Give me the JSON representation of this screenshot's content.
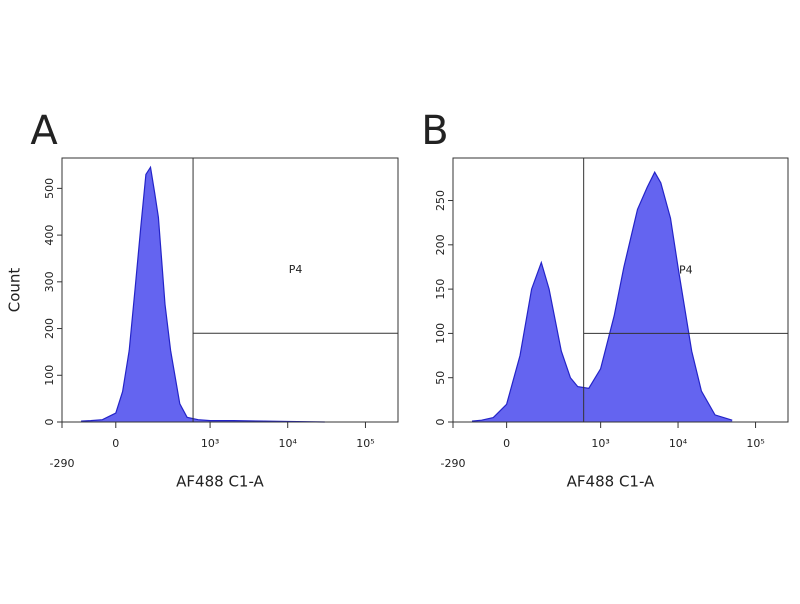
{
  "chart_data": [
    {
      "type": "area",
      "panel_label": "A",
      "x_label": "AF488 C1-A",
      "y_label": "Count",
      "x_scale": "biexponential",
      "color": "#6464f0",
      "x": [
        -150,
        -100,
        -50,
        0,
        25,
        50,
        75,
        100,
        125,
        150,
        175,
        200,
        250,
        300,
        400,
        500,
        700,
        1000,
        2000,
        5000,
        10000,
        30000
      ],
      "values": [
        2,
        3,
        5,
        19,
        65,
        153,
        290,
        420,
        530,
        545,
        490,
        438,
        252,
        153,
        39,
        10,
        5,
        3,
        3,
        2,
        1,
        0
      ],
      "xlim": [
        -290,
        262144
      ],
      "ylim": [
        0,
        565
      ],
      "xticks": [
        -290,
        0,
        {
          "value": 1000,
          "label": "10³"
        },
        {
          "value": 10000,
          "label": "10⁴"
        },
        {
          "value": 100000,
          "label": "10⁵"
        }
      ],
      "yticks": [
        0,
        100,
        200,
        300,
        400,
        500
      ],
      "gate": {
        "label": "P4",
        "x": 600,
        "y": 190
      }
    },
    {
      "type": "area",
      "panel_label": "B",
      "x_label": "AF488 C1-A",
      "x_scale": "biexponential",
      "color": "#6464f0",
      "x": [
        -150,
        -100,
        -50,
        0,
        50,
        100,
        150,
        200,
        300,
        400,
        500,
        700,
        1000,
        1500,
        2000,
        3000,
        4000,
        5000,
        6000,
        8000,
        10000,
        15000,
        20000,
        30000,
        50000
      ],
      "values": [
        1,
        2,
        5,
        20,
        75,
        150,
        180,
        150,
        80,
        50,
        40,
        38,
        60,
        120,
        175,
        240,
        265,
        282,
        270,
        230,
        175,
        80,
        35,
        8,
        2
      ],
      "xlim": [
        -290,
        262144
      ],
      "ylim": [
        0,
        298
      ],
      "xticks": [
        -290,
        0,
        {
          "value": 1000,
          "label": "10³"
        },
        {
          "value": 10000,
          "label": "10⁴"
        },
        {
          "value": 100000,
          "label": "10⁵"
        }
      ],
      "yticks": [
        0,
        50,
        100,
        150,
        200,
        250
      ],
      "gate": {
        "label": "P4",
        "x": 600,
        "y": 100
      }
    }
  ]
}
